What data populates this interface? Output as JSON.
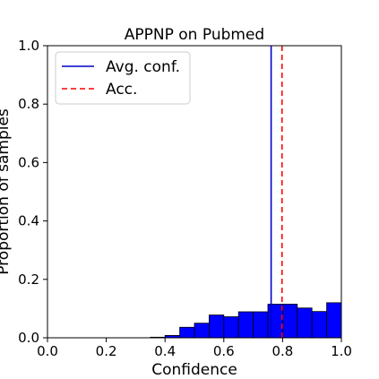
{
  "chart_data": {
    "type": "bar",
    "title": "APPNP on Pubmed",
    "xlabel": "Confidence",
    "ylabel": "Proportion of samples",
    "xlim": [
      0.0,
      1.0
    ],
    "ylim": [
      0.0,
      1.0
    ],
    "xticks": [
      "0.0",
      "0.2",
      "0.4",
      "0.6",
      "0.8",
      "1.0"
    ],
    "yticks": [
      "0.0",
      "0.2",
      "0.4",
      "0.6",
      "0.8",
      "1.0"
    ],
    "bin_width": 0.05,
    "bins": [
      {
        "x0": 0.35,
        "value": 0.002
      },
      {
        "x0": 0.4,
        "value": 0.008
      },
      {
        "x0": 0.45,
        "value": 0.036
      },
      {
        "x0": 0.5,
        "value": 0.05
      },
      {
        "x0": 0.55,
        "value": 0.078
      },
      {
        "x0": 0.6,
        "value": 0.072
      },
      {
        "x0": 0.65,
        "value": 0.089
      },
      {
        "x0": 0.7,
        "value": 0.089
      },
      {
        "x0": 0.75,
        "value": 0.115
      },
      {
        "x0": 0.8,
        "value": 0.115
      },
      {
        "x0": 0.85,
        "value": 0.102
      },
      {
        "x0": 0.9,
        "value": 0.09
      },
      {
        "x0": 0.95,
        "value": 0.12
      }
    ],
    "bar_color": "#0000ff",
    "lines": [
      {
        "name": "Avg. conf.",
        "x": 0.761,
        "color": "#0000cc",
        "style": "solid"
      },
      {
        "name": "Acc.",
        "x": 0.798,
        "color": "#ff0000",
        "style": "dashed"
      }
    ],
    "legend_position": "top-left",
    "grid": false
  }
}
